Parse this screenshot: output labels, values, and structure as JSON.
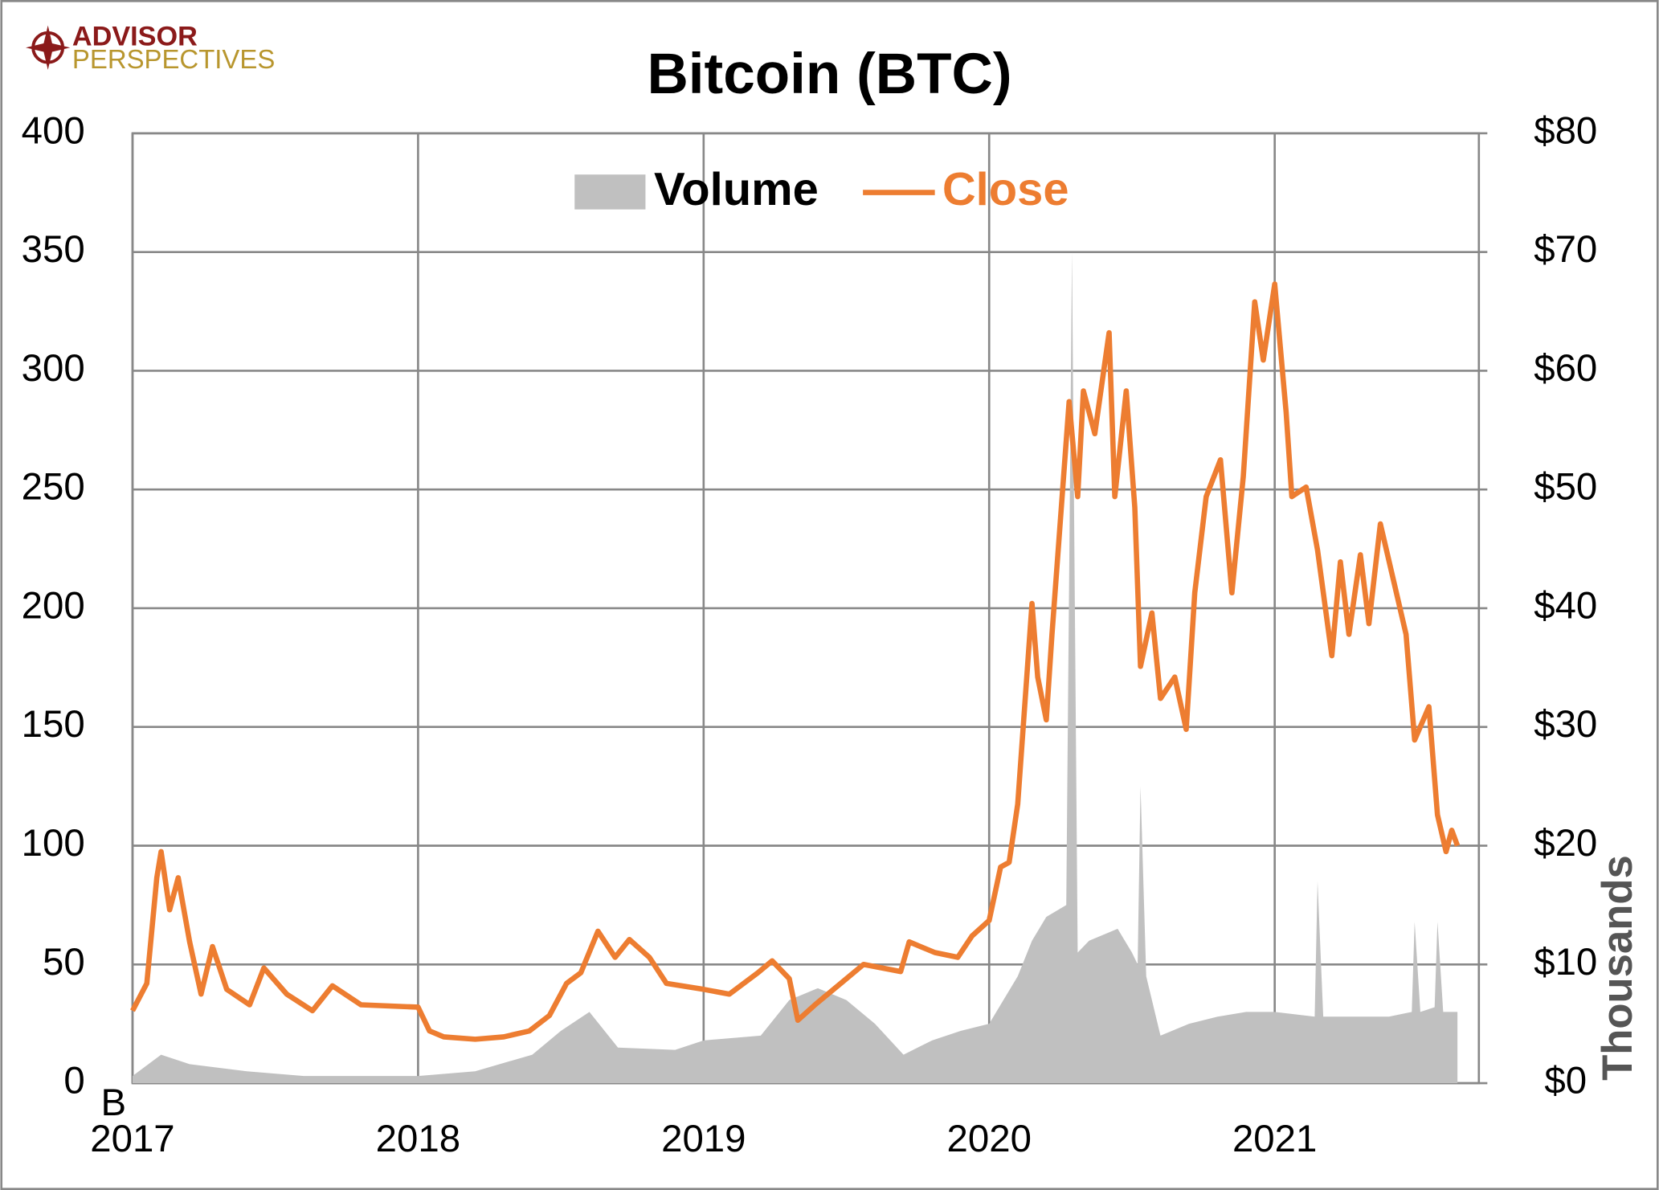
{
  "chart_data": {
    "type": "line",
    "title": "Bitcoin (BTC)",
    "logo_text": [
      "ADVISOR",
      "PERSPECTIVES"
    ],
    "ylabel": "B",
    "y2label": "Thousands",
    "xlim": [
      2017,
      2021.715
    ],
    "xticks": [
      2017,
      2018,
      2019,
      2020,
      2021
    ],
    "ylim": [
      0,
      400
    ],
    "yticks": [
      0,
      50,
      100,
      150,
      200,
      250,
      300,
      350,
      400
    ],
    "y2lim": [
      0,
      80
    ],
    "y2ticks": [
      {
        "value": 0,
        "label": "$0"
      },
      {
        "value": 10,
        "label": "$10"
      },
      {
        "value": 20,
        "label": "$20"
      },
      {
        "value": 30,
        "label": "$30"
      },
      {
        "value": 40,
        "label": "$40"
      },
      {
        "value": 50,
        "label": "$50"
      },
      {
        "value": 60,
        "label": "$60"
      },
      {
        "value": 70,
        "label": "$70"
      },
      {
        "value": 80,
        "label": "$80"
      }
    ],
    "grid": true,
    "legend": "top",
    "series": [
      {
        "name": "Volume",
        "type": "area",
        "axis": "y",
        "color": "#c0c0c0",
        "x": [
          2017.0,
          2017.1,
          2017.2,
          2017.4,
          2017.6,
          2017.8,
          2018.0,
          2018.2,
          2018.4,
          2018.5,
          2018.6,
          2018.7,
          2018.9,
          2019.0,
          2019.2,
          2019.3,
          2019.4,
          2019.5,
          2019.6,
          2019.7,
          2019.8,
          2019.9,
          2020.0,
          2020.1,
          2020.15,
          2020.2,
          2020.27,
          2020.29,
          2020.31,
          2020.35,
          2020.45,
          2020.5,
          2020.52,
          2020.53,
          2020.55,
          2020.6,
          2020.7,
          2020.8,
          2020.9,
          2021.0,
          2021.14,
          2021.15,
          2021.17,
          2021.4,
          2021.48,
          2021.49,
          2021.51,
          2021.56,
          2021.57,
          2021.59,
          2021.64
        ],
        "values": [
          3,
          12,
          8,
          5,
          3,
          3,
          3,
          5,
          12,
          22,
          30,
          15,
          14,
          18,
          20,
          35,
          40,
          35,
          25,
          12,
          18,
          22,
          25,
          45,
          60,
          70,
          75,
          350,
          55,
          60,
          65,
          55,
          50,
          125,
          45,
          20,
          25,
          28,
          30,
          30,
          28,
          85,
          28,
          28,
          30,
          68,
          30,
          32,
          68,
          30,
          30
        ]
      },
      {
        "name": "Close",
        "type": "line",
        "axis": "y2",
        "color": "#ed7d31",
        "x": [
          2017.0,
          2017.05,
          2017.085,
          2017.1,
          2017.13,
          2017.16,
          2017.2,
          2017.24,
          2017.28,
          2017.33,
          2017.41,
          2017.46,
          2017.54,
          2017.63,
          2017.7,
          2017.8,
          2018.0,
          2018.04,
          2018.09,
          2018.2,
          2018.3,
          2018.39,
          2018.46,
          2018.52,
          2018.57,
          2018.63,
          2018.69,
          2018.74,
          2018.81,
          2018.87,
          2019.0,
          2019.09,
          2019.19,
          2019.24,
          2019.3,
          2019.33,
          2019.39,
          2019.48,
          2019.56,
          2019.69,
          2019.72,
          2019.81,
          2019.89,
          2019.94,
          2020.0,
          2020.04,
          2020.07,
          2020.1,
          2020.15,
          2020.17,
          2020.2,
          2020.22,
          2020.25,
          2020.28,
          2020.31,
          2020.33,
          2020.37,
          2020.42,
          2020.44,
          2020.48,
          2020.51,
          2020.53,
          2020.57,
          2020.6,
          2020.65,
          2020.69,
          2020.72,
          2020.76,
          2020.81,
          2020.85,
          2020.89,
          2020.93,
          2020.96,
          2021.0,
          2021.04,
          2021.06,
          2021.11,
          2021.15,
          2021.2,
          2021.23,
          2021.26,
          2021.3,
          2021.33,
          2021.37,
          2021.43,
          2021.46,
          2021.49,
          2021.54,
          2021.57,
          2021.6,
          2021.62,
          2021.64
        ],
        "values": [
          6.1,
          8.4,
          17.3,
          19.5,
          14.6,
          17.3,
          11.9,
          7.5,
          11.5,
          7.9,
          6.6,
          9.7,
          7.5,
          6.1,
          8.2,
          6.6,
          6.4,
          4.4,
          3.9,
          3.7,
          3.9,
          4.4,
          5.7,
          8.4,
          9.3,
          12.8,
          10.6,
          12.1,
          10.6,
          8.4,
          7.9,
          7.5,
          9.3,
          10.3,
          8.8,
          5.3,
          6.6,
          8.4,
          10,
          9.4,
          11.9,
          11,
          10.6,
          12.4,
          13.7,
          18.2,
          18.6,
          23.5,
          40.4,
          34.2,
          30.6,
          37.8,
          47.6,
          57.4,
          49.4,
          58.3,
          54.7,
          63.2,
          49.4,
          58.3,
          48.5,
          35.1,
          39.6,
          32.4,
          34.2,
          29.8,
          41.3,
          49.4,
          52.5,
          41.3,
          51.1,
          65.8,
          60.9,
          67.3,
          56.5,
          49.4,
          50.2,
          44.9,
          36,
          43.9,
          37.8,
          44.5,
          38.7,
          47.1,
          40.9,
          37.8,
          28.9,
          31.7,
          22.6,
          19.5,
          21.3,
          20
        ]
      }
    ]
  }
}
